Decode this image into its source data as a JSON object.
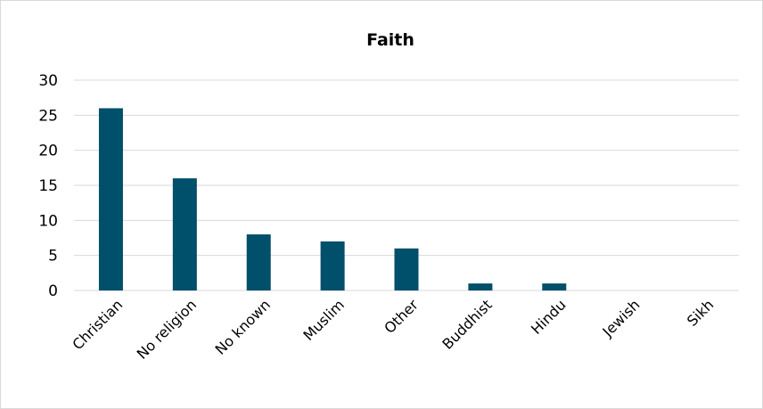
{
  "chart_data": {
    "type": "bar",
    "title": "Faith",
    "categories": [
      "Christian",
      "No religion",
      "No known",
      "Muslim",
      "Other",
      "Buddhist",
      "Hindu",
      "Jewish",
      "Sikh"
    ],
    "values": [
      26,
      16,
      8,
      7,
      6,
      1,
      1,
      0,
      0
    ],
    "ylim": [
      0,
      30
    ],
    "yticks": [
      "0",
      "5",
      "10",
      "15",
      "20",
      "25",
      "30"
    ],
    "xlabel": "",
    "ylabel": "",
    "grid": true,
    "legend": "none",
    "bar_color": "#004f6b",
    "grid_color": "#d9d9d9"
  }
}
